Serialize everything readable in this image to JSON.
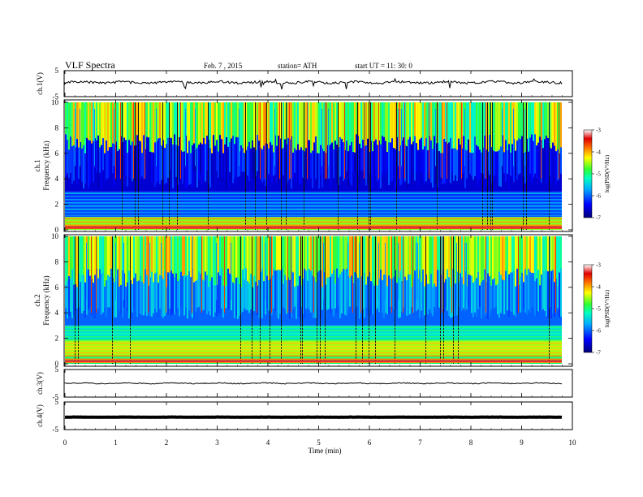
{
  "header": {
    "title": "VLF Spectra",
    "date": "Feb. 7 , 2015",
    "station": "station= ATH",
    "start": "start UT =   11: 30: 0"
  },
  "chart_data": [
    {
      "type": "line",
      "panel": "ch1-waveform",
      "ylabel": "ch.1(V)",
      "ylim": [
        -5,
        5
      ],
      "yticks": [
        5,
        -5
      ],
      "x_range_min": [
        0,
        9.8
      ],
      "trace_level_V": 0.5
    },
    {
      "type": "heatmap",
      "panel": "ch1-spectrogram",
      "ylabel": "Frequency (kHz)",
      "ylabel_prefix": "ch.1",
      "ylim": [
        0,
        10
      ],
      "yticks": [
        0,
        2,
        4,
        6,
        8,
        10
      ],
      "colorbar": {
        "label": "log(PSD(V²/Hz)",
        "range": [
          -7,
          -3
        ],
        "ticks": [
          "-3",
          "-4",
          "-5",
          "-6",
          "-7"
        ]
      }
    },
    {
      "type": "heatmap",
      "panel": "ch2-spectrogram",
      "ylabel": "Frequency (kHz)",
      "ylabel_prefix": "ch.2",
      "ylim": [
        0,
        10
      ],
      "yticks": [
        0,
        2,
        4,
        6,
        8,
        10
      ],
      "colorbar": {
        "label": "log(PSD(V²/Hz)",
        "range": [
          -7,
          -3
        ],
        "ticks": [
          "-3",
          "-4",
          "-5",
          "-6",
          "-7"
        ]
      }
    },
    {
      "type": "line",
      "panel": "ch3-waveform",
      "ylabel": "ch.3(V)",
      "ylim": [
        -5,
        5
      ],
      "yticks": [
        5,
        -5
      ],
      "trace_level_V": 0.0
    },
    {
      "type": "line",
      "panel": "ch4-waveform",
      "ylabel": "ch.4(V)",
      "ylim": [
        -5,
        5
      ],
      "yticks": [
        5,
        -5
      ],
      "trace_level_V": -0.5
    }
  ],
  "xaxis": {
    "label": "Time  (min)",
    "range": [
      0,
      10
    ],
    "ticks": [
      0,
      1,
      2,
      3,
      4,
      5,
      6,
      7,
      8,
      9,
      10
    ]
  }
}
